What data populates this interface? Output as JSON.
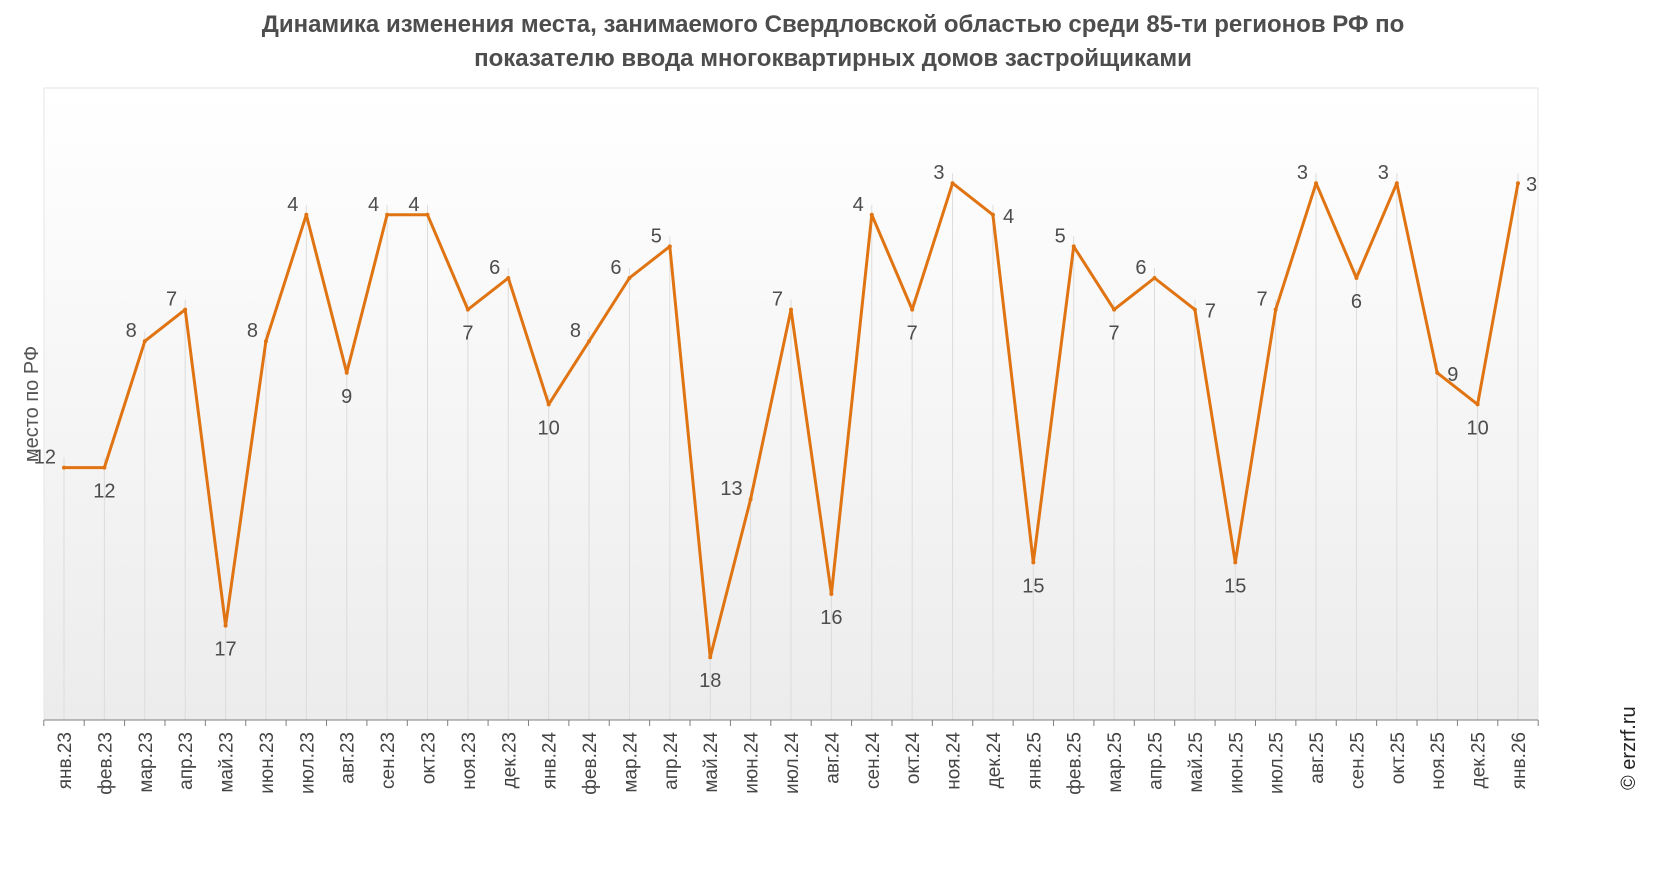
{
  "chart_data": {
    "type": "line",
    "title": "Динамика изменения места, занимаемого Свердловской областью среди 85-ти регионов РФ по показателю ввода многоквартирных домов застройщиками",
    "title_lines": [
      "Динамика изменения места, занимаемого Свердловской областью среди 85-ти регионов РФ по",
      "показателю ввода многоквартирных домов застройщиками"
    ],
    "xlabel": "",
    "ylabel": "место по РФ",
    "y_inverted": true,
    "ylim": [
      20,
      1
    ],
    "grid": "vertical drop lines at each point",
    "legend": "none",
    "categories": [
      "янв.23",
      "фев.23",
      "мар.23",
      "апр.23",
      "май.23",
      "июн.23",
      "июл.23",
      "авг.23",
      "сен.23",
      "окт.23",
      "ноя.23",
      "дек.23",
      "янв.24",
      "фев.24",
      "мар.24",
      "апр.24",
      "май.24",
      "июн.24",
      "июл.24",
      "авг.24",
      "сен.24",
      "окт.24",
      "ноя.24",
      "дек.24",
      "янв.25",
      "фев.25",
      "мар.25",
      "апр.25",
      "май.25",
      "июн.25",
      "июл.25",
      "авг.25",
      "сен.25",
      "окт.25",
      "ноя.25",
      "дек.25",
      "янв.26"
    ],
    "series": [
      {
        "values": [
          12,
          12,
          8,
          7,
          17,
          8,
          4,
          9,
          4,
          4,
          7,
          6,
          10,
          8,
          6,
          5,
          18,
          13,
          7,
          16,
          4,
          7,
          3,
          4,
          15,
          5,
          7,
          6,
          7,
          15,
          7,
          3,
          6,
          3,
          9,
          10,
          3
        ],
        "color": "#e07412"
      }
    ]
  },
  "watermark": "© erzrf.ru"
}
